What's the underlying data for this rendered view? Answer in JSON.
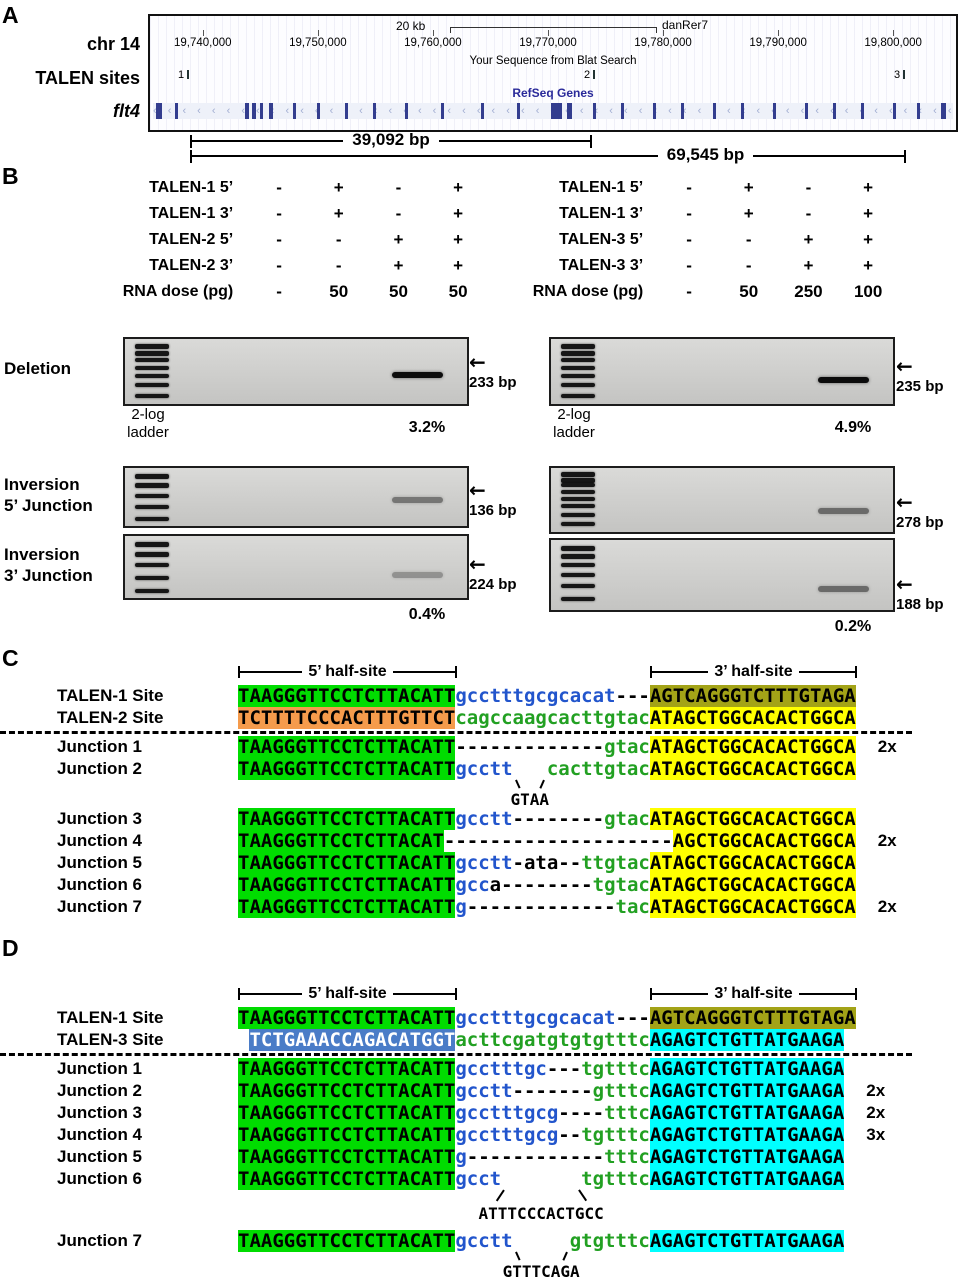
{
  "colors": {
    "site_green": "#00DC00",
    "site_olive": "#A3A317",
    "site_orange": "#F59B4C",
    "site_yellow": "#FFFF00",
    "site_blue": "#4A7CC7",
    "site_cyan": "#00FFFF",
    "spacer_blue": "#2255CC",
    "spacer_green": "#22A022",
    "refseq_blue": "#2A2A9A"
  },
  "icons": {
    "left_arrow": "←"
  },
  "panelA": {
    "letter": "A",
    "labels": {
      "chr": "chr 14",
      "talen_sites": "TALEN sites",
      "gene": "flt4"
    },
    "browser": {
      "scale": "20 kb",
      "assembly": "danRer7",
      "coordinates": [
        "19,740,000",
        "19,750,000",
        "19,760,000",
        "19,770,000",
        "19,780,000",
        "19,790,000",
        "19,800,000"
      ],
      "blat_title": "Your Sequence from Blat Search",
      "sites": [
        "1",
        "2",
        "3"
      ],
      "refseq": "RefSeq Genes"
    },
    "distance_1": "39,092 bp",
    "distance_2": "69,545 bp"
  },
  "panelB": {
    "letter": "B",
    "left_table": {
      "rows": [
        {
          "label": "TALEN-1 5’",
          "values": [
            "-",
            "+",
            "-",
            "+"
          ]
        },
        {
          "label": "TALEN-1 3’",
          "values": [
            "-",
            "+",
            "-",
            "+"
          ]
        },
        {
          "label": "TALEN-2 5’",
          "values": [
            "-",
            "-",
            "+",
            "+"
          ]
        },
        {
          "label": "TALEN-2 3’",
          "values": [
            "-",
            "-",
            "+",
            "+"
          ]
        },
        {
          "label": "RNA dose (pg)",
          "values": [
            "-",
            "50",
            "50",
            "50"
          ]
        }
      ]
    },
    "right_table": {
      "rows": [
        {
          "label": "TALEN-1 5’",
          "values": [
            "-",
            "+",
            "-",
            "+"
          ]
        },
        {
          "label": "TALEN-1 3’",
          "values": [
            "-",
            "+",
            "-",
            "+"
          ]
        },
        {
          "label": "TALEN-3 5’",
          "values": [
            "-",
            "-",
            "+",
            "+"
          ]
        },
        {
          "label": "TALEN-3 3’",
          "values": [
            "-",
            "-",
            "+",
            "+"
          ]
        },
        {
          "label": "RNA dose (pg)",
          "values": [
            "-",
            "50",
            "250",
            "100"
          ]
        }
      ]
    },
    "row_labels": {
      "deletion": "Deletion",
      "inv5": [
        "Inversion",
        "5’ Junction"
      ],
      "inv3": [
        "Inversion",
        "3’ Junction"
      ]
    },
    "ladder_label": [
      "2-log",
      "ladder"
    ],
    "gels": {
      "del_left": {
        "bp": "233 bp",
        "pct": "3.2%"
      },
      "del_right": {
        "bp": "235 bp",
        "pct": "4.9%"
      },
      "inv5_left": {
        "bp": "136 bp"
      },
      "inv5_right": {
        "bp": "278 bp"
      },
      "inv3_left": {
        "bp": "224 bp",
        "pct": "0.4%"
      },
      "inv3_right": {
        "bp": "188 bp",
        "pct": "0.2%"
      }
    }
  },
  "panelC": {
    "letter": "C",
    "headers": {
      "five": "5’ half-site",
      "three": "3’ half-site"
    },
    "rows": [
      {
        "label": "TALEN-1 Site",
        "segs": [
          [
            "gL",
            "TAAGGGTTCCTCTTACATT"
          ],
          [
            "b",
            "gcctttgcgcacat"
          ],
          [
            "k",
            "---"
          ],
          [
            "oR",
            "AGTCAGGGTCTTTGTAGA"
          ]
        ]
      },
      {
        "label": "TALEN-2 Site",
        "segs": [
          [
            "orL",
            "TCTTTTCCCACTTTGTTCT"
          ],
          [
            "g",
            "cagccaagcacttgtac"
          ],
          [
            "yR",
            "ATAGCTGGCACACTGGCA"
          ]
        ]
      },
      {
        "label": "Junction 1",
        "sepBefore": true,
        "mult": "2x",
        "segs": [
          [
            "gL",
            "TAAGGGTTCCTCTTACATT"
          ],
          [
            "k",
            "-------------"
          ],
          [
            "g",
            "gtac"
          ],
          [
            "yR",
            "ATAGCTGGCACACTGGCA"
          ]
        ]
      },
      {
        "label": "Junction 2",
        "mb": 28,
        "segs": [
          [
            "gL",
            "TAAGGGTTCCTCTTACATT"
          ],
          [
            "b",
            "gcctt"
          ],
          [
            "gap",
            "3",
            "GTAA",
            "conv"
          ],
          [
            "g",
            "cacttgtac"
          ],
          [
            "yR",
            "ATAGCTGGCACACTGGCA"
          ]
        ]
      },
      {
        "label": "Junction 3",
        "segs": [
          [
            "gL",
            "TAAGGGTTCCTCTTACATT"
          ],
          [
            "b",
            "gcctt"
          ],
          [
            "k",
            "--------"
          ],
          [
            "g",
            "gtac"
          ],
          [
            "yR",
            "ATAGCTGGCACACTGGCA"
          ]
        ]
      },
      {
        "label": "Junction 4",
        "mult": "2x",
        "segs": [
          [
            "gL",
            "TAAGGGTTCCTCTTACAT"
          ],
          [
            "k",
            "--------------------"
          ],
          [
            "yR",
            "AGCTGGCACACTGGCA"
          ]
        ]
      },
      {
        "label": "Junction 5",
        "segs": [
          [
            "gL",
            "TAAGGGTTCCTCTTACATT"
          ],
          [
            "b",
            "gcctt"
          ],
          [
            "k",
            "-ata--"
          ],
          [
            "g",
            "ttgtac"
          ],
          [
            "yR",
            "ATAGCTGGCACACTGGCA"
          ]
        ]
      },
      {
        "label": "Junction 6",
        "segs": [
          [
            "gL",
            "TAAGGGTTCCTCTTACATT"
          ],
          [
            "b",
            "gcc"
          ],
          [
            "k",
            "a--------"
          ],
          [
            "g",
            "tgtac"
          ],
          [
            "yR",
            "ATAGCTGGCACACTGGCA"
          ]
        ]
      },
      {
        "label": "Junction 7",
        "mult": "2x",
        "segs": [
          [
            "gL",
            "TAAGGGTTCCTCTTACATT"
          ],
          [
            "b",
            "g"
          ],
          [
            "k",
            "-------------"
          ],
          [
            "g",
            "tac"
          ],
          [
            "yR",
            "ATAGCTGGCACACTGGCA"
          ]
        ]
      }
    ]
  },
  "panelD": {
    "letter": "D",
    "headers": {
      "five": "5’ half-site",
      "three": "3’ half-site"
    },
    "rows": [
      {
        "label": "TALEN-1 Site",
        "segs": [
          [
            "gL",
            "TAAGGGTTCCTCTTACATT"
          ],
          [
            "b",
            "gcctttgcgcacat"
          ],
          [
            "k",
            "---"
          ],
          [
            "oR",
            "AGTCAGGGTCTTTGTAGA"
          ]
        ]
      },
      {
        "label": "TALEN-3 Site",
        "segs": [
          [
            "pad",
            "1"
          ],
          [
            "blL",
            "TCTGAAACCAGACATGGT"
          ],
          [
            "g",
            "acttcgatgtgtgtttc"
          ],
          [
            "cR",
            "AGAGTCTGTTATGAAGA"
          ]
        ]
      },
      {
        "label": "Junction 1",
        "sepBefore": true,
        "segs": [
          [
            "gL",
            "TAAGGGTTCCTCTTACATT"
          ],
          [
            "b",
            "gcctttgc"
          ],
          [
            "k",
            "---"
          ],
          [
            "g",
            "tgtttc"
          ],
          [
            "cR",
            "AGAGTCTGTTATGAAGA"
          ]
        ]
      },
      {
        "label": "Junction 2",
        "mult": "2x",
        "segs": [
          [
            "gL",
            "TAAGGGTTCCTCTTACATT"
          ],
          [
            "b",
            "gcctt"
          ],
          [
            "k",
            "-------"
          ],
          [
            "g",
            "gtttc"
          ],
          [
            "cR",
            "AGAGTCTGTTATGAAGA"
          ]
        ]
      },
      {
        "label": "Junction 3",
        "mult": "2x",
        "segs": [
          [
            "gL",
            "TAAGGGTTCCTCTTACATT"
          ],
          [
            "b",
            "gcctttgcg"
          ],
          [
            "k",
            "----"
          ],
          [
            "g",
            "tttc"
          ],
          [
            "cR",
            "AGAGTCTGTTATGAAGA"
          ]
        ]
      },
      {
        "label": "Junction 4",
        "mult": "3x",
        "segs": [
          [
            "gL",
            "TAAGGGTTCCTCTTACATT"
          ],
          [
            "b",
            "gcctttgcg"
          ],
          [
            "k",
            "--"
          ],
          [
            "g",
            "tgtttc"
          ],
          [
            "cR",
            "AGAGTCTGTTATGAAGA"
          ]
        ]
      },
      {
        "label": "Junction 5",
        "segs": [
          [
            "gL",
            "TAAGGGTTCCTCTTACATT"
          ],
          [
            "b",
            "g"
          ],
          [
            "k",
            "------------"
          ],
          [
            "g",
            "tttc"
          ],
          [
            "cR",
            "AGAGTCTGTTATGAAGA"
          ]
        ]
      },
      {
        "label": "Junction 6",
        "mb": 40,
        "segs": [
          [
            "gL",
            "TAAGGGTTCCTCTTACATT"
          ],
          [
            "b",
            "gcct"
          ],
          [
            "gap",
            "7",
            "ATTTCCCACTGCC",
            "dvg"
          ],
          [
            "g",
            "tgtttc"
          ],
          [
            "cR",
            "AGAGTCTGTTATGAAGA"
          ]
        ]
      },
      {
        "label": "Junction 7",
        "segs": [
          [
            "gL",
            "TAAGGGTTCCTCTTACATT"
          ],
          [
            "b",
            "gcctt"
          ],
          [
            "gap",
            "5",
            "GTTTCAGA",
            "conv"
          ],
          [
            "g",
            "gtgtttc"
          ],
          [
            "cR",
            "AGAGTCTGTTATGAAGA"
          ]
        ]
      }
    ]
  }
}
